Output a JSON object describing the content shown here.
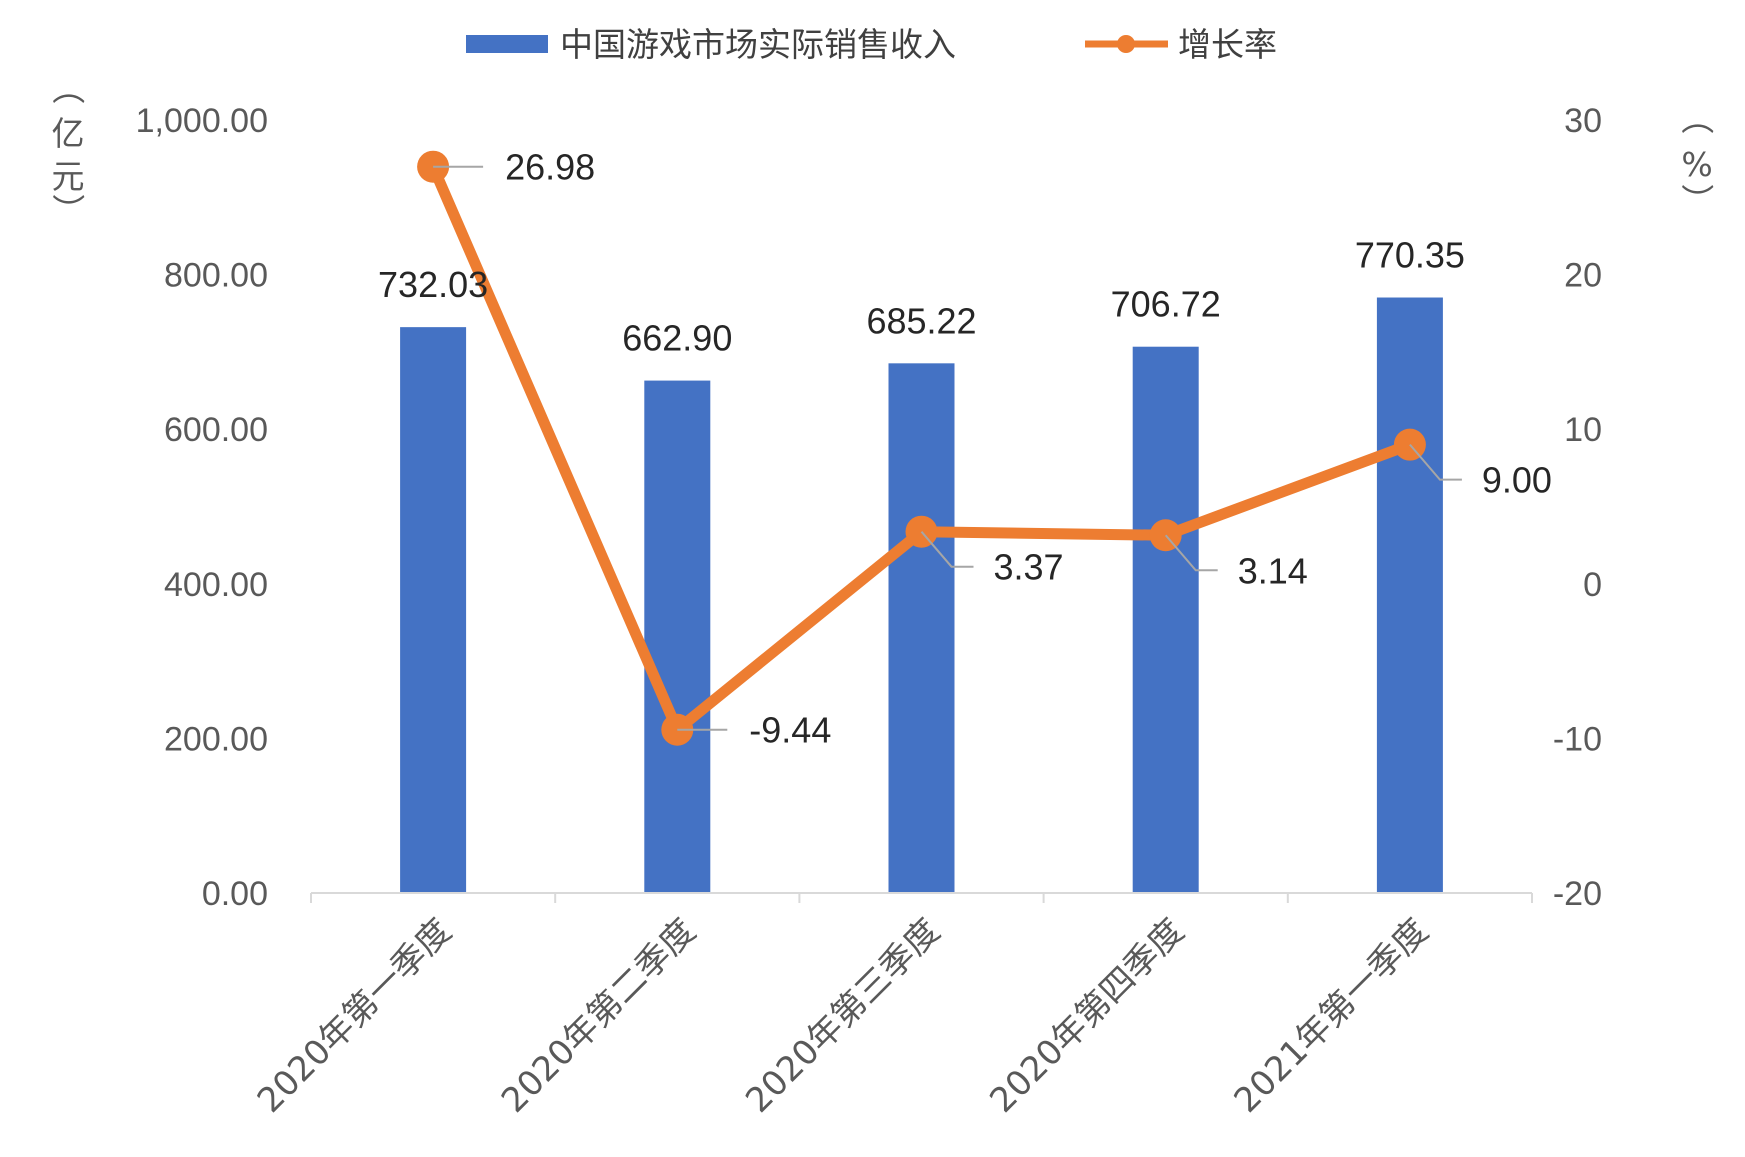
{
  "chart_data": {
    "type": "bar+line",
    "categories": [
      "2020年第一季度",
      "2020年第二季度",
      "2020年第三季度",
      "2020年第四季度",
      "2021年第一季度"
    ],
    "series": [
      {
        "name": "中国游戏市场实际销售收入",
        "type": "bar",
        "axis": "left",
        "color": "#4472C4",
        "values": [
          732.03,
          662.9,
          685.22,
          706.72,
          770.35
        ],
        "labels": [
          "732.03",
          "662.90",
          "685.22",
          "706.72",
          "770.35"
        ]
      },
      {
        "name": "增长率",
        "type": "line",
        "axis": "right",
        "color": "#ED7D31",
        "values": [
          26.98,
          -9.44,
          3.37,
          3.14,
          9.0
        ],
        "labels": [
          "26.98",
          "-9.44",
          "3.37",
          "3.14",
          "9.00"
        ]
      }
    ],
    "y_left": {
      "unit_label": [
        "（",
        "亿",
        "元",
        "）"
      ],
      "range": [
        0,
        1000
      ],
      "ticks": [
        0,
        200,
        400,
        600,
        800,
        1000
      ],
      "tick_labels": [
        "0.00",
        "200.00",
        "400.00",
        "600.00",
        "800.00",
        "1,000.00"
      ]
    },
    "y_right": {
      "unit_label": [
        "（",
        "%",
        "）"
      ],
      "range": [
        -20,
        30
      ],
      "ticks": [
        -20,
        -10,
        0,
        10,
        20,
        30
      ],
      "tick_labels": [
        "-20",
        "-10",
        "0",
        "10",
        "20",
        "30"
      ]
    },
    "legend": {
      "position": "top-center"
    },
    "grid": false
  }
}
